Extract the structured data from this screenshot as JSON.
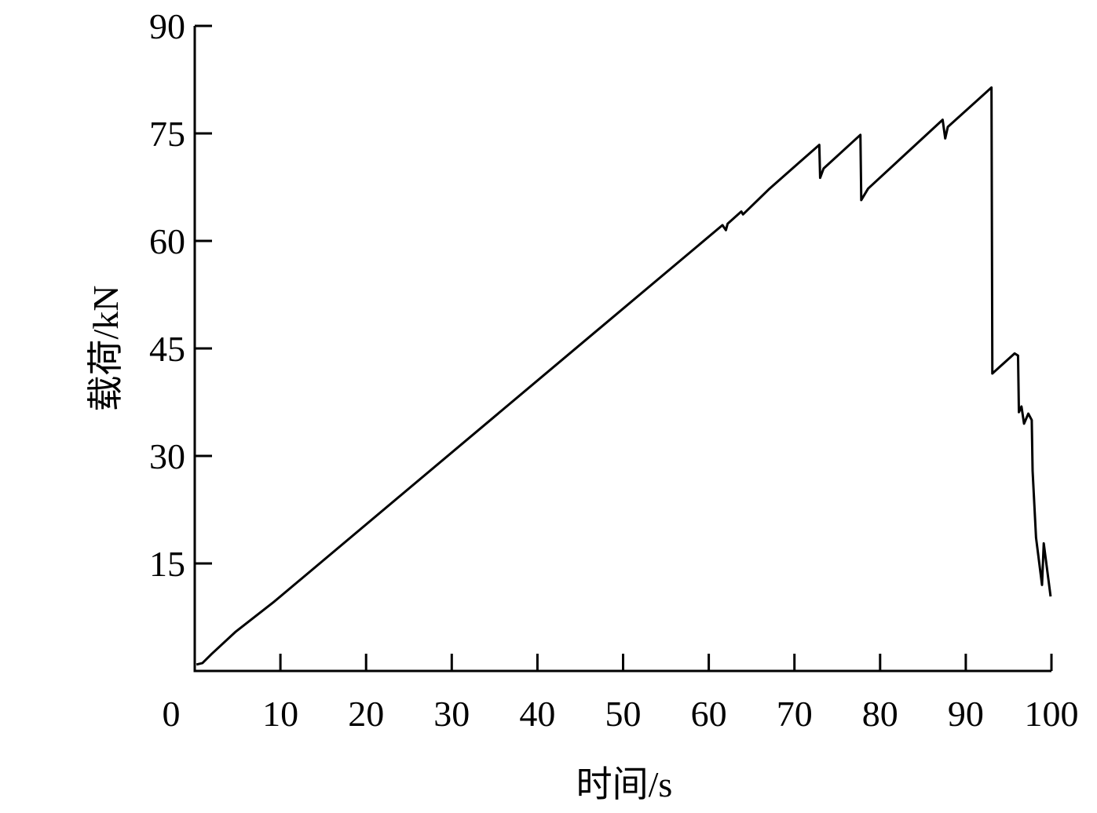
{
  "chart_data": {
    "type": "line",
    "x_label": "时间/s",
    "y_label": "载荷/kN",
    "xlim": [
      0,
      100
    ],
    "xticks": [
      0,
      10,
      20,
      30,
      40,
      50,
      60,
      70,
      80,
      90,
      100
    ],
    "ylim": [
      0,
      90
    ],
    "yticks": [
      15,
      30,
      45,
      60,
      75,
      90
    ],
    "series": [
      {
        "name": "load",
        "color": "#000000",
        "x": [
          0.2,
          0.9,
          2.0,
          4.8,
          9.3,
          61.6,
          62.0,
          62.2,
          63.8,
          64.0,
          67.1,
          72.9,
          73.0,
          73.4,
          77.7,
          77.8,
          78.6,
          87.3,
          87.6,
          87.9,
          93.0,
          93.1,
          95.7,
          96.1,
          96.2,
          96.5,
          96.8,
          97.3,
          97.7,
          97.8,
          98.2,
          98.9,
          99.1,
          99.9
        ],
        "values": [
          0.9,
          1.1,
          2.4,
          5.5,
          9.7,
          62.2,
          61.5,
          62.4,
          64.1,
          63.7,
          67.3,
          73.4,
          68.8,
          70.1,
          74.8,
          65.7,
          67.3,
          76.9,
          74.3,
          75.9,
          81.4,
          41.5,
          44.3,
          44.0,
          36.1,
          36.9,
          34.5,
          35.9,
          35.0,
          27.9,
          18.6,
          12.0,
          17.8,
          10.4
        ]
      }
    ]
  }
}
